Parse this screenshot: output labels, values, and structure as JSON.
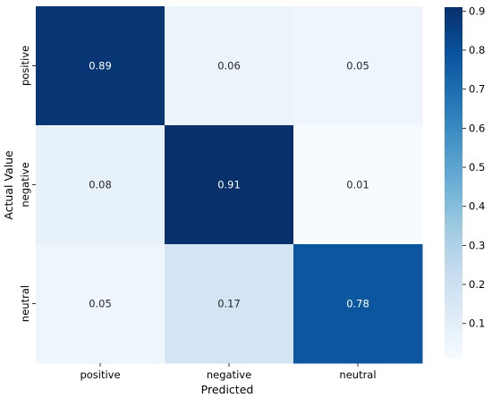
{
  "chart_data": {
    "type": "heatmap",
    "xlabel": "Predicted",
    "ylabel": "Actual Value",
    "x_categories": [
      "positive",
      "negative",
      "neutral"
    ],
    "y_categories": [
      "positive",
      "negative",
      "neutral"
    ],
    "values": [
      [
        0.89,
        0.06,
        0.05
      ],
      [
        0.08,
        0.91,
        0.01
      ],
      [
        0.05,
        0.17,
        0.78
      ]
    ],
    "value_labels": [
      [
        "0.89",
        "0.06",
        "0.05"
      ],
      [
        "0.08",
        "0.91",
        "0.01"
      ],
      [
        "0.05",
        "0.17",
        "0.78"
      ]
    ],
    "colorscale": "Blues",
    "colorbar": {
      "range": [
        0.01,
        0.91
      ],
      "ticks": [
        0.1,
        0.2,
        0.3,
        0.4,
        0.5,
        0.6,
        0.7,
        0.8,
        0.9
      ],
      "tick_labels": [
        "0.1",
        "0.2",
        "0.3",
        "0.4",
        "0.5",
        "0.6",
        "0.7",
        "0.8",
        "0.9"
      ]
    }
  }
}
